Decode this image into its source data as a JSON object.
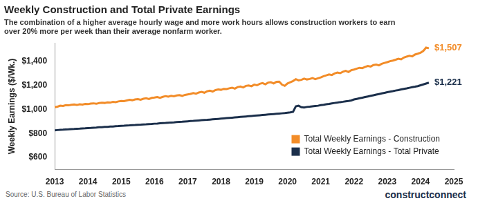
{
  "chart_data": {
    "type": "line",
    "title": "Weekly Construction and Total Private Earnings",
    "subtitle": [
      "The combination of a higher average hourly wage and more work hours allows construction workers to earn",
      "over 20% more per week than their average nonfarm worker."
    ],
    "y_label": "Weekly Earnings ($/Wk.)",
    "source": "Source: U.S. Bureau of Labor Statistics",
    "brand": "constructconnect",
    "categories": [
      "2013",
      null,
      null,
      null,
      null,
      null,
      null,
      null,
      null,
      null,
      null,
      null,
      "2014",
      null,
      null,
      null,
      null,
      null,
      null,
      null,
      null,
      null,
      null,
      null,
      "2015",
      null,
      null,
      null,
      null,
      null,
      null,
      null,
      null,
      null,
      null,
      null,
      "2016",
      null,
      null,
      null,
      null,
      null,
      null,
      null,
      null,
      null,
      null,
      null,
      "2017",
      null,
      null,
      null,
      null,
      null,
      null,
      null,
      null,
      null,
      null,
      null,
      "2018",
      null,
      null,
      null,
      null,
      null,
      null,
      null,
      null,
      null,
      null,
      null,
      "2019",
      null,
      null,
      null,
      null,
      null,
      null,
      null,
      null,
      null,
      null,
      null,
      "2020",
      null,
      null,
      null,
      null,
      null,
      null,
      null,
      null,
      null,
      null,
      null,
      "2021",
      null,
      null,
      null,
      null,
      null,
      null,
      null,
      null,
      null,
      null,
      null,
      "2022",
      null,
      null,
      null,
      null,
      null,
      null,
      null,
      null,
      null,
      null,
      null,
      "2023",
      null,
      null,
      null,
      null,
      null,
      null,
      null,
      null,
      null,
      null,
      null,
      "2024",
      null,
      null,
      null,
      null,
      null,
      null,
      null,
      null,
      null,
      null,
      null,
      "2025"
    ],
    "series": [
      {
        "name": "Total Weekly Earnings - Construction",
        "color": "#f28c28",
        "values": [
          1018,
          1022,
          1030,
          1028,
          1035,
          1033,
          1038,
          1040,
          1036,
          1042,
          1040,
          1045,
          1043,
          1048,
          1050,
          1046,
          1052,
          1055,
          1053,
          1058,
          1056,
          1062,
          1060,
          1066,
          1070,
          1068,
          1074,
          1079,
          1076,
          1082,
          1085,
          1080,
          1088,
          1092,
          1086,
          1095,
          1098,
          1102,
          1096,
          1104,
          1110,
          1106,
          1112,
          1108,
          1115,
          1118,
          1112,
          1120,
          1124,
          1128,
          1135,
          1130,
          1140,
          1145,
          1138,
          1150,
          1155,
          1148,
          1160,
          1165,
          1162,
          1170,
          1168,
          1175,
          1180,
          1172,
          1185,
          1190,
          1182,
          1195,
          1198,
          1192,
          1205,
          1200,
          1212,
          1218,
          1208,
          1222,
          1225,
          1215,
          1228,
          1230,
          1205,
          1195,
          1215,
          1225,
          1235,
          1250,
          1240,
          1245,
          1255,
          1248,
          1252,
          1260,
          1250,
          1258,
          1265,
          1275,
          1282,
          1290,
          1285,
          1298,
          1305,
          1300,
          1312,
          1320,
          1310,
          1325,
          1330,
          1338,
          1345,
          1342,
          1352,
          1360,
          1355,
          1368,
          1372,
          1365,
          1378,
          1385,
          1392,
          1400,
          1405,
          1412,
          1420,
          1415,
          1430,
          1438,
          1445,
          1440,
          1455,
          1462,
          1470,
          1485,
          1512,
          1507,
          null,
          null,
          null,
          null,
          null,
          null,
          null,
          null,
          null
        ]
      },
      {
        "name": "Total Weekly Earnings - Total Private",
        "color": "#1b2f4b",
        "values": [
          826,
          828,
          830,
          831,
          833,
          834,
          836,
          837,
          839,
          840,
          842,
          843,
          845,
          846,
          848,
          849,
          851,
          852,
          854,
          855,
          857,
          858,
          860,
          861,
          863,
          864,
          866,
          867,
          869,
          870,
          872,
          873,
          875,
          876,
          878,
          879,
          881,
          882,
          884,
          886,
          887,
          889,
          891,
          892,
          894,
          896,
          897,
          899,
          901,
          903,
          904,
          906,
          908,
          910,
          912,
          913,
          915,
          917,
          919,
          921,
          923,
          925,
          927,
          929,
          931,
          933,
          935,
          937,
          939,
          941,
          943,
          945,
          947,
          949,
          951,
          953,
          955,
          957,
          959,
          961,
          963,
          965,
          967,
          969,
          972,
          975,
          980,
          1025,
          1030,
          1018,
          1015,
          1020,
          1022,
          1025,
          1028,
          1030,
          1035,
          1038,
          1042,
          1045,
          1049,
          1053,
          1056,
          1060,
          1063,
          1067,
          1070,
          1074,
          1082,
          1087,
          1092,
          1097,
          1102,
          1107,
          1112,
          1117,
          1122,
          1127,
          1132,
          1137,
          1142,
          1147,
          1151,
          1156,
          1160,
          1165,
          1170,
          1174,
          1179,
          1184,
          1188,
          1193,
          1200,
          1207,
          1214,
          1221,
          null,
          null,
          null,
          null,
          null,
          null,
          null,
          null,
          null
        ]
      }
    ],
    "ylim": [
      500,
      1550
    ],
    "yticks": [
      {
        "value": 600,
        "label": "$600"
      },
      {
        "value": 800,
        "label": "$800"
      },
      {
        "value": 1000,
        "label": "$1,000"
      },
      {
        "value": 1200,
        "label": "$1,200"
      },
      {
        "value": 1400,
        "label": "$1,400"
      }
    ],
    "grid": false,
    "legend": "bottom-right",
    "annotations": [
      {
        "text": "$1,507",
        "series": "Total Weekly Earnings - Construction"
      },
      {
        "text": "$1,221",
        "series": "Total Weekly Earnings - Total Private"
      }
    ]
  }
}
